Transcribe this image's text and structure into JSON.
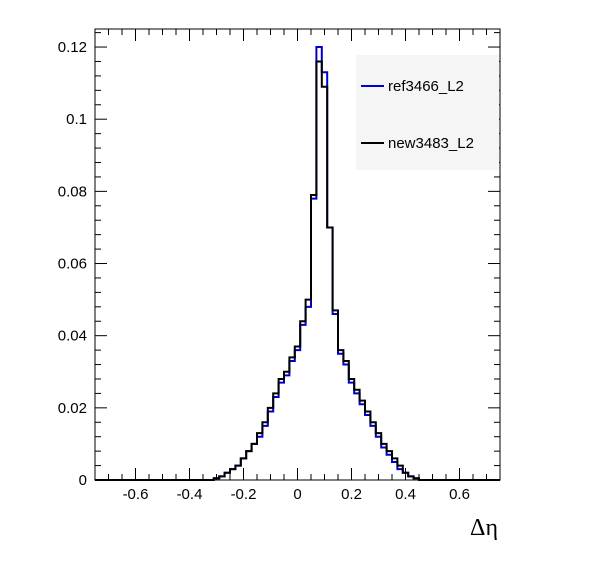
{
  "chart_data": {
    "type": "line",
    "style": "step-histogram",
    "xlabel": "Δη",
    "ylabel": "",
    "title": "",
    "xlim": [
      -0.75,
      0.75
    ],
    "ylim": [
      0,
      0.125
    ],
    "xticks": [
      -0.6,
      -0.4,
      -0.2,
      0,
      0.2,
      0.4,
      0.6
    ],
    "xtick_labels": [
      "-0.6",
      "-0.4",
      "-0.2",
      "0",
      "0.2",
      "0.4",
      "0.6"
    ],
    "yticks": [
      0,
      0.02,
      0.04,
      0.06,
      0.08,
      0.1,
      0.12
    ],
    "ytick_labels": [
      "0",
      "0.02",
      "0.04",
      "0.06",
      "0.08",
      "0.1",
      "0.12"
    ],
    "grid": false,
    "legend_position": "top-right",
    "bin_width": 0.02,
    "bin_start": -0.75,
    "series": [
      {
        "name": "ref3466_L2",
        "color": "#0000cc",
        "values": [
          0,
          0,
          0,
          0,
          0,
          0,
          0,
          0,
          0,
          0,
          0,
          0,
          0,
          0,
          0,
          0,
          0,
          0,
          0,
          0,
          0,
          0,
          0.0005,
          0.001,
          0.002,
          0.003,
          0.004,
          0.006,
          0.008,
          0.01,
          0.012,
          0.015,
          0.019,
          0.023,
          0.027,
          0.029,
          0.033,
          0.036,
          0.043,
          0.048,
          0.078,
          0.12,
          0.113,
          0.07,
          0.046,
          0.035,
          0.032,
          0.027,
          0.024,
          0.021,
          0.018,
          0.015,
          0.012,
          0.009,
          0.007,
          0.005,
          0.003,
          0.002,
          0.001,
          0.0005,
          0,
          0,
          0,
          0,
          0,
          0,
          0,
          0,
          0,
          0,
          0,
          0,
          0,
          0,
          0
        ]
      },
      {
        "name": "new3483_L2",
        "color": "#000000",
        "values": [
          0,
          0,
          0,
          0,
          0,
          0,
          0,
          0,
          0,
          0,
          0,
          0,
          0,
          0,
          0,
          0,
          0,
          0,
          0,
          0,
          0,
          0,
          0.0005,
          0.001,
          0.002,
          0.003,
          0.004,
          0.006,
          0.008,
          0.01,
          0.013,
          0.016,
          0.02,
          0.024,
          0.028,
          0.03,
          0.034,
          0.037,
          0.044,
          0.05,
          0.079,
          0.116,
          0.109,
          0.07,
          0.047,
          0.036,
          0.033,
          0.028,
          0.025,
          0.022,
          0.019,
          0.016,
          0.013,
          0.01,
          0.008,
          0.006,
          0.004,
          0.002,
          0.001,
          0.0005,
          0,
          0,
          0,
          0,
          0,
          0,
          0,
          0,
          0,
          0,
          0,
          0,
          0,
          0,
          0
        ]
      }
    ]
  }
}
